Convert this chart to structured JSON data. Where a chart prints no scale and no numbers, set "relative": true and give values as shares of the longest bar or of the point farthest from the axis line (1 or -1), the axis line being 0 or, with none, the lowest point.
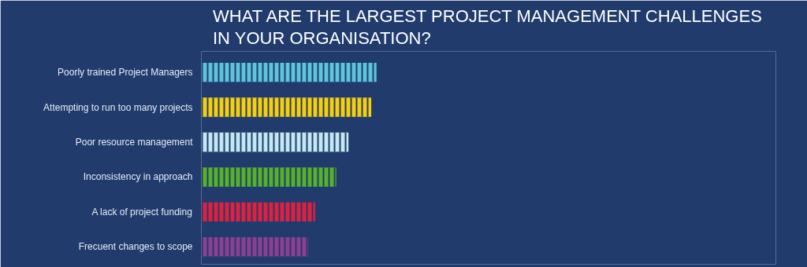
{
  "chart_data": {
    "type": "bar",
    "orientation": "horizontal",
    "relative": true,
    "title": "WHAT ARE THE LARGEST PROJECT MANAGEMENT CHALLENGES IN YOUR ORGANISATION?",
    "categories": [
      "Poorly trained Project Managers",
      "Attempting to run too many projects",
      "Poor resource management",
      "Inconsistency in approach",
      "A lack of project funding",
      "Frecuent changes to scope"
    ],
    "values": [
      1,
      0.97,
      0.84,
      0.77,
      0.65,
      0.61
    ],
    "colors": [
      "#5ec4dc",
      "#f5cf0f",
      "#c4e8f2",
      "#55b22a",
      "#e0203f",
      "#8e3f93"
    ]
  }
}
